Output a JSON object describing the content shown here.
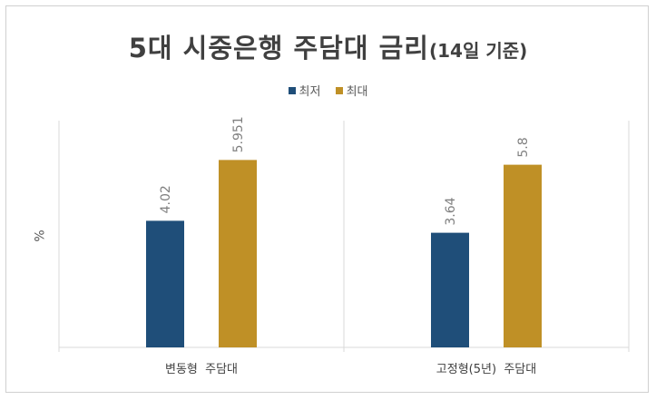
{
  "chart_data": {
    "type": "bar",
    "title": "5대 시중은행 주담대 금리",
    "subtitle": "(14일 기준)",
    "ylabel": "%",
    "xlabel": "",
    "categories": [
      "변동형  주담대",
      "고정형(5년)  주담대"
    ],
    "series": [
      {
        "name": "최저",
        "values": [
          4.02,
          3.64
        ],
        "labels": [
          "4.02",
          "3.64"
        ],
        "color": "#1f4e79"
      },
      {
        "name": "최대",
        "values": [
          5.951,
          5.8
        ],
        "labels": [
          "5.951",
          "5.8"
        ],
        "color": "#bf9026"
      }
    ],
    "ylim": [
      0,
      7.2
    ],
    "grid": false,
    "legend_position": "top",
    "axis_color": "#d9d9d9"
  }
}
